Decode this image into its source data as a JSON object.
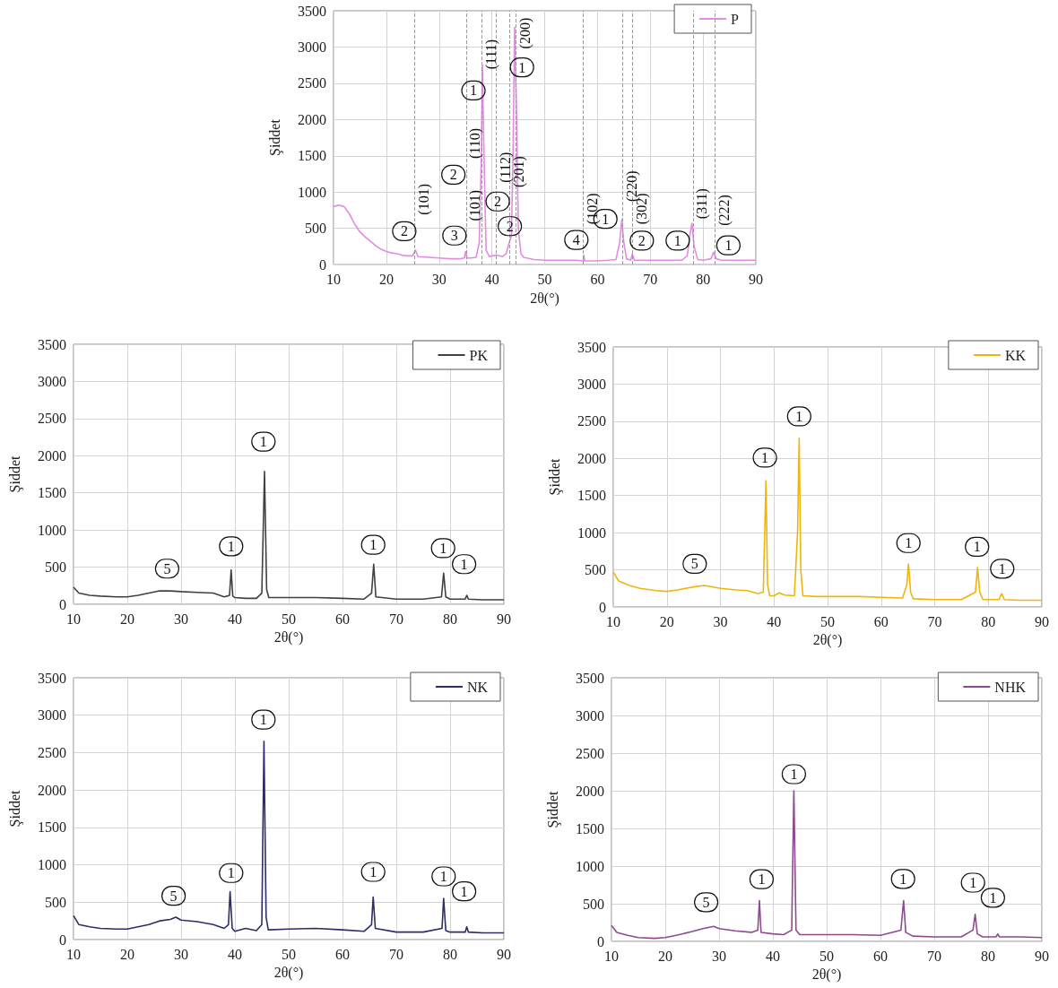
{
  "chart_data": [
    {
      "type": "line",
      "xlabel": "2θ(°)",
      "ylabel": "Şiddet",
      "legend": "top right",
      "grid": true,
      "xlim": [
        10,
        90
      ],
      "xticks": [
        10,
        20,
        30,
        40,
        50,
        60,
        70,
        80,
        90
      ],
      "ylim": [
        0,
        3500
      ],
      "yticks": [
        0,
        500,
        1000,
        1500,
        2000,
        2500,
        3000,
        3500
      ],
      "x": [
        10,
        11,
        12,
        13,
        14,
        15,
        16,
        17,
        18,
        19,
        20,
        21,
        22,
        23,
        24,
        25,
        25.5,
        26,
        28,
        30,
        32,
        34,
        34.8,
        35,
        35.3,
        36,
        37,
        37.6,
        38,
        38.2,
        38.5,
        38.9,
        39.5,
        40,
        41,
        42,
        42.7,
        43.2,
        43.7,
        44,
        44.3,
        44.7,
        45,
        45.5,
        46,
        48,
        50,
        52,
        54,
        56,
        57.3,
        57.4,
        57.6,
        60,
        62,
        63.5,
        64.2,
        64.6,
        65,
        65.5,
        66.3,
        66.6,
        67,
        70,
        73,
        76,
        77,
        77.6,
        77.9,
        78.3,
        79,
        80,
        81.5,
        82,
        82.5,
        83.5,
        86,
        90
      ],
      "series": [
        {
          "name": "P",
          "color": "#e38be3",
          "values": [
            800,
            820,
            800,
            700,
            560,
            450,
            380,
            320,
            260,
            210,
            180,
            160,
            150,
            130,
            120,
            120,
            200,
            110,
            100,
            90,
            80,
            80,
            90,
            180,
            90,
            90,
            100,
            300,
            1500,
            2750,
            1500,
            200,
            110,
            120,
            130,
            110,
            150,
            280,
            400,
            1500,
            3270,
            2000,
            500,
            150,
            100,
            70,
            60,
            60,
            60,
            60,
            50,
            130,
            50,
            50,
            60,
            70,
            300,
            620,
            300,
            80,
            60,
            150,
            60,
            60,
            60,
            60,
            120,
            450,
            570,
            250,
            70,
            60,
            80,
            170,
            80,
            60,
            60,
            60
          ]
        }
      ],
      "ref_lines": [
        {
          "axis": "x",
          "value": 25.3,
          "color": "#9a9a9a",
          "line_style": "dashed"
        },
        {
          "axis": "x",
          "value": 35.1,
          "color": "#9a9a9a",
          "line_style": "dashed"
        },
        {
          "axis": "x",
          "value": 38.1,
          "color": "#9a9a9a",
          "line_style": "dashed"
        },
        {
          "axis": "x",
          "value": 40.8,
          "color": "#9a9a9a",
          "line_style": "dashed"
        },
        {
          "axis": "x",
          "value": 43.4,
          "color": "#9a9a9a",
          "line_style": "dashed"
        },
        {
          "axis": "x",
          "value": 44.5,
          "color": "#9a9a9a",
          "line_style": "dashed"
        },
        {
          "axis": "x",
          "value": 57.3,
          "color": "#9a9a9a",
          "line_style": "dashed"
        },
        {
          "axis": "x",
          "value": 64.8,
          "color": "#9a9a9a",
          "line_style": "dashed"
        },
        {
          "axis": "x",
          "value": 66.6,
          "color": "#9a9a9a",
          "line_style": "dashed"
        },
        {
          "axis": "x",
          "value": 78.1,
          "color": "#9a9a9a",
          "line_style": "dashed"
        },
        {
          "axis": "x",
          "value": 82.3,
          "color": "#9a9a9a",
          "line_style": "dashed"
        }
      ],
      "annotations": [
        {
          "text": "2",
          "x": 23.4,
          "y": 460
        },
        {
          "text": "(101)",
          "x": 25.3,
          "y": 900
        },
        {
          "text": "3",
          "x": 32.9,
          "y": 400
        },
        {
          "text": "(101)",
          "x": 35.1,
          "y": 815
        },
        {
          "text": "2",
          "x": 32.7,
          "y": 1240
        },
        {
          "text": "(110)",
          "x": 35.1,
          "y": 1670
        },
        {
          "text": "1",
          "x": 36.5,
          "y": 2400
        },
        {
          "text": "(111)",
          "x": 38.1,
          "y": 2900
        },
        {
          "text": "2",
          "x": 41.1,
          "y": 870
        },
        {
          "text": "(112)",
          "x": 40.8,
          "y": 1340
        },
        {
          "text": "(201)",
          "x": 43.4,
          "y": 1280
        },
        {
          "text": "2",
          "x": 43.4,
          "y": 530
        },
        {
          "text": "1",
          "x": 45.7,
          "y": 2720
        },
        {
          "text": "(200)",
          "x": 44.5,
          "y": 3190
        },
        {
          "text": "4",
          "x": 56.0,
          "y": 340
        },
        {
          "text": "(102)",
          "x": 57.3,
          "y": 770
        },
        {
          "text": "1",
          "x": 61.5,
          "y": 630
        },
        {
          "text": "(220)",
          "x": 64.8,
          "y": 1080
        },
        {
          "text": "2",
          "x": 68.4,
          "y": 330
        },
        {
          "text": "(302)",
          "x": 66.6,
          "y": 770
        },
        {
          "text": "1",
          "x": 75.2,
          "y": 330
        },
        {
          "text": "(311)",
          "x": 78.1,
          "y": 840
        },
        {
          "text": "1",
          "x": 84.8,
          "y": 265
        },
        {
          "text": "(222)",
          "x": 82.3,
          "y": 750
        }
      ]
    },
    {
      "type": "line",
      "xlabel": "2θ(°)",
      "ylabel": "Şiddet",
      "legend": "top right",
      "grid": true,
      "xlim": [
        10,
        90
      ],
      "xticks": [
        10,
        20,
        30,
        40,
        50,
        60,
        70,
        80,
        90
      ],
      "ylim": [
        0,
        3500
      ],
      "yticks": [
        0,
        500,
        1000,
        1500,
        2000,
        2500,
        3000,
        3500
      ],
      "x": [
        10,
        11,
        13,
        15,
        18,
        20,
        22,
        24,
        26,
        28,
        30,
        33,
        36,
        38,
        39,
        39.3,
        39.6,
        40,
        42,
        44,
        45,
        45.5,
        45.9,
        46.3,
        50,
        55,
        60,
        64,
        65.4,
        65.8,
        66.2,
        70,
        75,
        78.4,
        78.8,
        79.2,
        80,
        82.8,
        83.1,
        83.4,
        86,
        90
      ],
      "series": [
        {
          "name": "PK",
          "color": "#404040",
          "values": [
            230,
            150,
            120,
            110,
            100,
            100,
            120,
            150,
            180,
            180,
            170,
            160,
            150,
            100,
            120,
            460,
            110,
            90,
            80,
            80,
            150,
            1790,
            200,
            90,
            90,
            90,
            80,
            70,
            150,
            540,
            100,
            70,
            70,
            100,
            420,
            100,
            70,
            70,
            120,
            70,
            60,
            60
          ]
        }
      ],
      "annotations": [
        {
          "text": "5",
          "x": 27.4,
          "y": 480
        },
        {
          "text": "1",
          "x": 39.3,
          "y": 780
        },
        {
          "text": "1",
          "x": 45.3,
          "y": 2190
        },
        {
          "text": "1",
          "x": 65.7,
          "y": 800
        },
        {
          "text": "1",
          "x": 78.7,
          "y": 755
        },
        {
          "text": "1",
          "x": 82.6,
          "y": 540
        }
      ]
    },
    {
      "type": "line",
      "xlabel": "2θ(°)",
      "ylabel": "Şiddet",
      "legend": "top right",
      "grid": true,
      "xlim": [
        10,
        90
      ],
      "xticks": [
        10,
        20,
        30,
        40,
        50,
        60,
        70,
        80,
        90
      ],
      "ylim": [
        0,
        3500
      ],
      "yticks": [
        0,
        500,
        1000,
        1500,
        2000,
        2500,
        3000,
        3500
      ],
      "x": [
        10,
        11,
        13,
        15,
        18,
        20,
        22,
        25,
        27,
        30,
        33,
        35,
        37,
        38,
        38.2,
        38.5,
        38.8,
        39.2,
        40,
        41,
        42,
        43.8,
        44.4,
        44.7,
        45,
        45.4,
        48,
        52,
        56,
        60,
        64,
        64.8,
        65.1,
        65.5,
        66,
        70,
        75,
        77.6,
        78,
        78.4,
        79,
        82,
        82.5,
        83,
        86,
        90
      ],
      "series": [
        {
          "name": "KK",
          "color": "#efb50c",
          "values": [
            470,
            350,
            290,
            250,
            220,
            210,
            230,
            270,
            290,
            250,
            230,
            220,
            180,
            200,
            800,
            1700,
            300,
            150,
            150,
            190,
            160,
            150,
            1000,
            2270,
            500,
            150,
            140,
            140,
            140,
            130,
            120,
            300,
            580,
            200,
            110,
            100,
            100,
            200,
            530,
            200,
            100,
            100,
            180,
            100,
            90,
            90
          ]
        }
      ],
      "annotations": [
        {
          "text": "5",
          "x": 25.2,
          "y": 580
        },
        {
          "text": "1",
          "x": 38.3,
          "y": 2010
        },
        {
          "text": "1",
          "x": 44.7,
          "y": 2565
        },
        {
          "text": "1",
          "x": 65.1,
          "y": 860
        },
        {
          "text": "1",
          "x": 77.9,
          "y": 810
        },
        {
          "text": "1",
          "x": 82.6,
          "y": 515
        }
      ]
    },
    {
      "type": "line",
      "xlabel": "2θ(°)",
      "ylabel": "Şiddet",
      "legend": "top right",
      "grid": true,
      "xlim": [
        10,
        90
      ],
      "xticks": [
        10,
        20,
        30,
        40,
        50,
        60,
        70,
        80,
        90
      ],
      "ylim": [
        0,
        3500
      ],
      "yticks": [
        0,
        500,
        1000,
        1500,
        2000,
        2500,
        3000,
        3500
      ],
      "x": [
        10,
        11,
        13,
        15,
        18,
        20,
        22,
        24,
        26,
        28,
        29,
        30,
        33,
        36,
        38,
        38.8,
        39.1,
        39.5,
        40,
        42,
        44,
        45,
        45.4,
        45.8,
        46.2,
        50,
        55,
        60,
        64,
        65.4,
        65.7,
        66.1,
        70,
        75,
        78.5,
        78.8,
        79.2,
        80,
        82.8,
        83.1,
        83.4,
        86,
        90
      ],
      "series": [
        {
          "name": "NK",
          "color": "#2d2d6b",
          "values": [
            320,
            200,
            170,
            150,
            140,
            140,
            170,
            200,
            250,
            270,
            300,
            260,
            240,
            200,
            150,
            200,
            640,
            150,
            110,
            150,
            120,
            200,
            2650,
            300,
            130,
            140,
            150,
            130,
            110,
            200,
            570,
            150,
            100,
            100,
            150,
            550,
            120,
            100,
            100,
            170,
            100,
            90,
            90
          ]
        }
      ],
      "annotations": [
        {
          "text": "5",
          "x": 28.6,
          "y": 585
        },
        {
          "text": "1",
          "x": 39.3,
          "y": 890
        },
        {
          "text": "1",
          "x": 45.3,
          "y": 2940
        },
        {
          "text": "1",
          "x": 65.7,
          "y": 905
        },
        {
          "text": "1",
          "x": 78.8,
          "y": 845
        },
        {
          "text": "1",
          "x": 82.6,
          "y": 645
        }
      ]
    },
    {
      "type": "line",
      "xlabel": "2θ(°)",
      "ylabel": "Şiddet",
      "legend": "top right",
      "grid": true,
      "xlim": [
        10,
        90
      ],
      "xticks": [
        10,
        20,
        30,
        40,
        50,
        60,
        70,
        80,
        90
      ],
      "ylim": [
        0,
        3500
      ],
      "yticks": [
        0,
        500,
        1000,
        1500,
        2000,
        2500,
        3000,
        3500
      ],
      "x": [
        10,
        11,
        13,
        15,
        18,
        20,
        22,
        25,
        27,
        29,
        30,
        33,
        36,
        37.2,
        37.5,
        37.8,
        40,
        42,
        43.5,
        43.9,
        44.3,
        45,
        50,
        55,
        60,
        63.8,
        64.3,
        64.7,
        66,
        70,
        75,
        77.2,
        77.6,
        78,
        79,
        81.5,
        81.8,
        82.1,
        86,
        90
      ],
      "series": [
        {
          "name": "NHK",
          "color": "#8e4a8e",
          "values": [
            210,
            120,
            80,
            50,
            40,
            50,
            80,
            130,
            170,
            200,
            170,
            140,
            120,
            150,
            540,
            120,
            100,
            90,
            150,
            2000,
            150,
            90,
            90,
            90,
            80,
            150,
            540,
            120,
            70,
            60,
            60,
            150,
            360,
            100,
            60,
            60,
            100,
            60,
            60,
            50
          ]
        }
      ],
      "annotations": [
        {
          "text": "5",
          "x": 27.6,
          "y": 520
        },
        {
          "text": "1",
          "x": 37.9,
          "y": 825
        },
        {
          "text": "1",
          "x": 43.9,
          "y": 2220
        },
        {
          "text": "1",
          "x": 64.2,
          "y": 830
        },
        {
          "text": "1",
          "x": 77.2,
          "y": 780
        },
        {
          "text": "1",
          "x": 80.9,
          "y": 580
        }
      ]
    }
  ]
}
